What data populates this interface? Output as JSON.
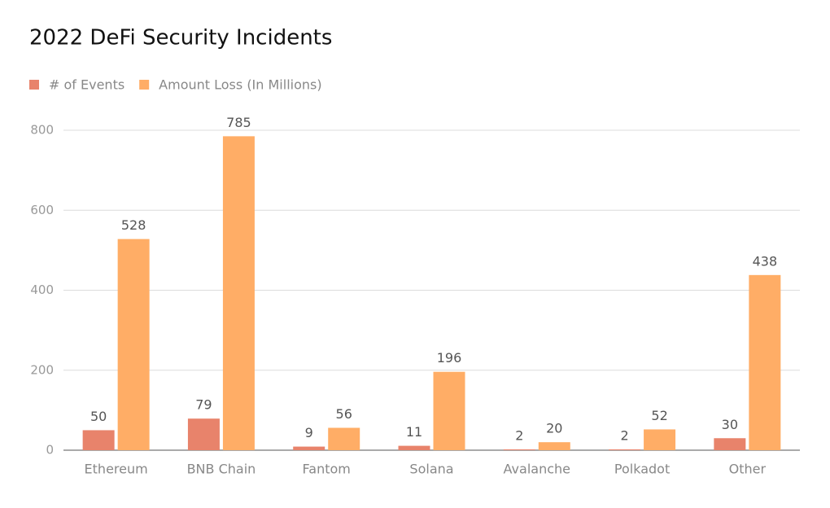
{
  "chart_data": {
    "type": "bar",
    "title": "2022 DeFi Security Incidents",
    "categories": [
      "Ethereum",
      "BNB Chain",
      "Fantom",
      "Solana",
      "Avalanche",
      "Polkadot",
      "Other"
    ],
    "series": [
      {
        "name": "# of Events",
        "color": "#e8836b",
        "values": [
          50,
          79,
          9,
          11,
          2,
          2,
          30
        ]
      },
      {
        "name": "Amount Loss (In Millions)",
        "color": "#ffad66",
        "values": [
          528,
          785,
          56,
          196,
          20,
          52,
          438
        ]
      }
    ],
    "ylim": [
      0,
      800
    ],
    "yticks": [
      0,
      200,
      400,
      600,
      800
    ],
    "grid": true
  }
}
